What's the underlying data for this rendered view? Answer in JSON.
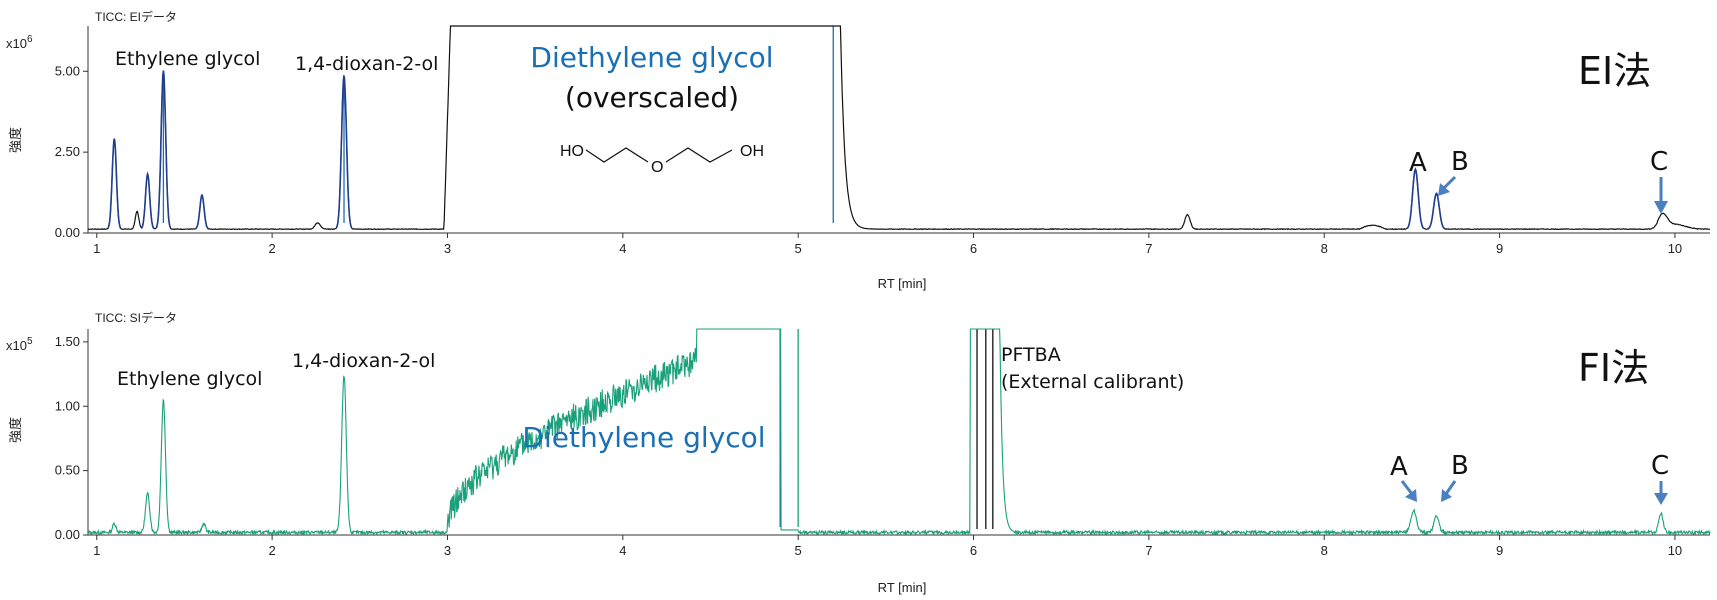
{
  "chart_data": [
    {
      "type": "line",
      "panel_label": "TICC: EIデータ",
      "method_label": "EI法",
      "y_exponent": "x10",
      "y_exponent_power": "6",
      "ylabel": "強度",
      "xlabel": "RT [min]",
      "xlim": [
        0.95,
        10.2
      ],
      "ylim": [
        0,
        6.4
      ],
      "x_ticks": [
        "1",
        "2",
        "3",
        "4",
        "5",
        "6",
        "7",
        "8",
        "9",
        "10"
      ],
      "y_ticks": [
        "0.00",
        "2.50",
        "5.00"
      ],
      "y_tick_values": [
        0,
        2.5,
        5.0
      ],
      "baseline": 0.12,
      "peaks": [
        {
          "x": 1.1,
          "y": 2.8,
          "w": 0.012
        },
        {
          "x": 1.23,
          "y": 0.55,
          "w": 0.01
        },
        {
          "x": 1.29,
          "y": 1.7,
          "w": 0.012
        },
        {
          "x": 1.38,
          "y": 4.9,
          "w": 0.013
        },
        {
          "x": 1.6,
          "y": 1.05,
          "w": 0.012
        },
        {
          "x": 2.26,
          "y": 0.2,
          "w": 0.015
        },
        {
          "x": 2.41,
          "y": 4.75,
          "w": 0.014
        },
        {
          "x": 7.22,
          "y": 0.45,
          "w": 0.015
        },
        {
          "x": 8.52,
          "y": 1.85,
          "w": 0.016
        },
        {
          "x": 8.64,
          "y": 1.1,
          "w": 0.016
        },
        {
          "x": 9.93,
          "y": 0.42,
          "w": 0.025
        }
      ],
      "overscaled_region": [
        3.0,
        5.24
      ],
      "blue_markers": [
        1.38,
        2.41,
        5.2
      ],
      "annotations": {
        "ethylene_glycol": "Ethylene glycol",
        "dioxanol": "1,4-dioxan-2-ol",
        "deg": "Diethylene glycol",
        "overscaled": "(overscaled)",
        "ho_left": "HO",
        "o_mid": "O",
        "oh_right": "OH",
        "A": "A",
        "B": "B",
        "C": "C"
      }
    },
    {
      "type": "line",
      "panel_label": "TICC: SIデータ",
      "method_label": "FI法",
      "y_exponent": "x10",
      "y_exponent_power": "5",
      "ylabel": "強度",
      "xlabel": "RT [min]",
      "xlim": [
        0.95,
        10.2
      ],
      "ylim": [
        0,
        1.6
      ],
      "x_ticks": [
        "1",
        "2",
        "3",
        "4",
        "5",
        "6",
        "7",
        "8",
        "9",
        "10"
      ],
      "y_ticks": [
        "0.00",
        "0.50",
        "1.00",
        "1.50"
      ],
      "y_tick_values": [
        0,
        0.5,
        1.0,
        1.5
      ],
      "baseline": 0.02,
      "peaks": [
        {
          "x": 1.1,
          "y": 0.07,
          "w": 0.01
        },
        {
          "x": 1.29,
          "y": 0.3,
          "w": 0.012
        },
        {
          "x": 1.38,
          "y": 1.03,
          "w": 0.012
        },
        {
          "x": 1.61,
          "y": 0.07,
          "w": 0.01
        },
        {
          "x": 2.41,
          "y": 1.22,
          "w": 0.013
        },
        {
          "x": 8.51,
          "y": 0.17,
          "w": 0.016
        },
        {
          "x": 8.64,
          "y": 0.13,
          "w": 0.014
        },
        {
          "x": 9.92,
          "y": 0.15,
          "w": 0.012
        }
      ],
      "hump_region": [
        3.0,
        4.5
      ],
      "blue_markers": [
        4.92,
        5.0
      ],
      "pftba_region": [
        5.98,
        6.15
      ],
      "annotations": {
        "ethylene_glycol": "Ethylene glycol",
        "dioxanol": "1,4-dioxan-2-ol",
        "deg": "Diethylene glycol",
        "pftba": "PFTBA",
        "pftba_sub": "(External calibrant)",
        "A": "A",
        "B": "B",
        "C": "C"
      }
    }
  ],
  "colors": {
    "ei_trace": "#111111",
    "ei_peak": "#1f3f8f",
    "fi_trace": "#1aa07a",
    "marker_blue": "#1a6fb5",
    "arrow": "#4a7fc0",
    "axis": "#333333"
  }
}
